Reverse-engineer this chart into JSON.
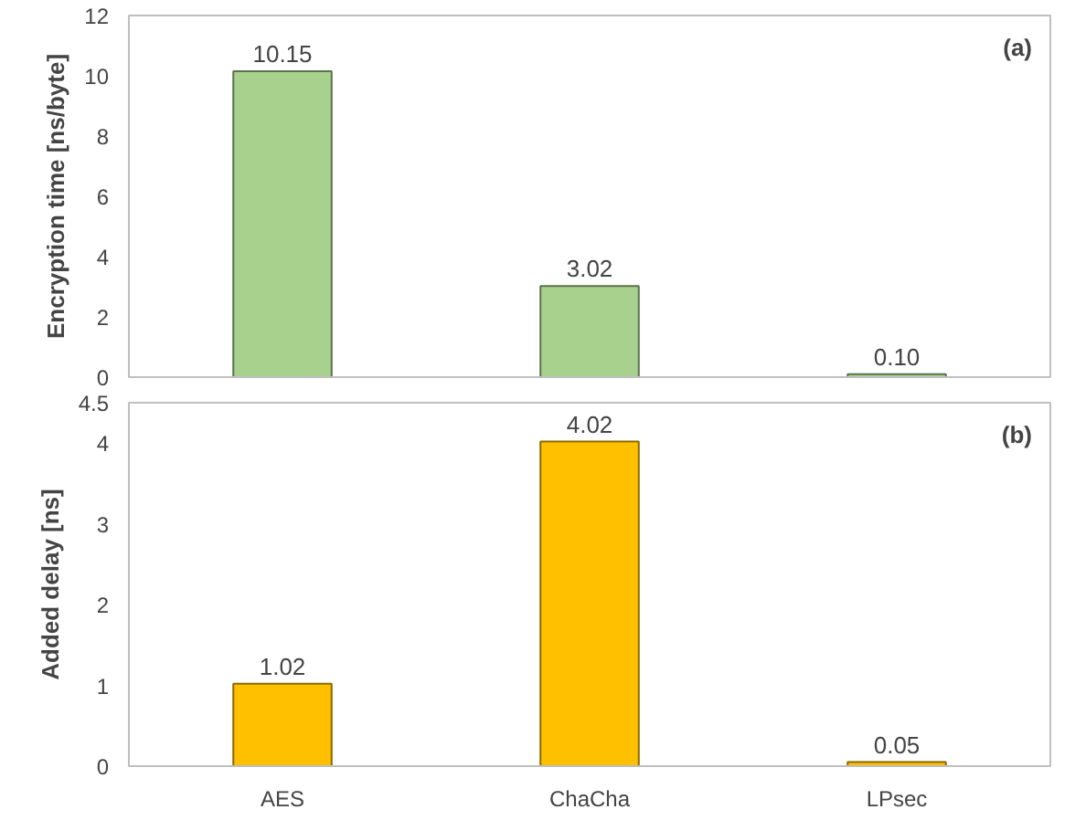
{
  "chart_data": [
    {
      "type": "bar",
      "ylabel": "Encryption time [ns/byte]",
      "categories": [
        null,
        null,
        null
      ],
      "values": [
        10.15,
        3.02,
        0.1
      ],
      "value_labels": [
        "10.15",
        "3.02",
        "0.10"
      ],
      "color": "#a9d18e",
      "ylim": [
        0,
        12
      ],
      "yticks": [
        0,
        2,
        4,
        6,
        8,
        10,
        12
      ],
      "tick_labels": "y",
      "grid": false,
      "annotations": [
        "(a)"
      ]
    },
    {
      "type": "bar",
      "ylabel": "Added delay [ns]",
      "categories": [
        "AES",
        "ChaCha",
        "LPsec"
      ],
      "values": [
        1.02,
        4.02,
        0.05
      ],
      "value_labels": [
        "1.02",
        "4.02",
        "0.05"
      ],
      "color": "#ffc000",
      "ylim": [
        0,
        4.5
      ],
      "yticks": [
        0,
        1,
        2,
        3,
        4,
        4.5
      ],
      "grid": false,
      "annotations": [
        "(b)"
      ]
    }
  ]
}
